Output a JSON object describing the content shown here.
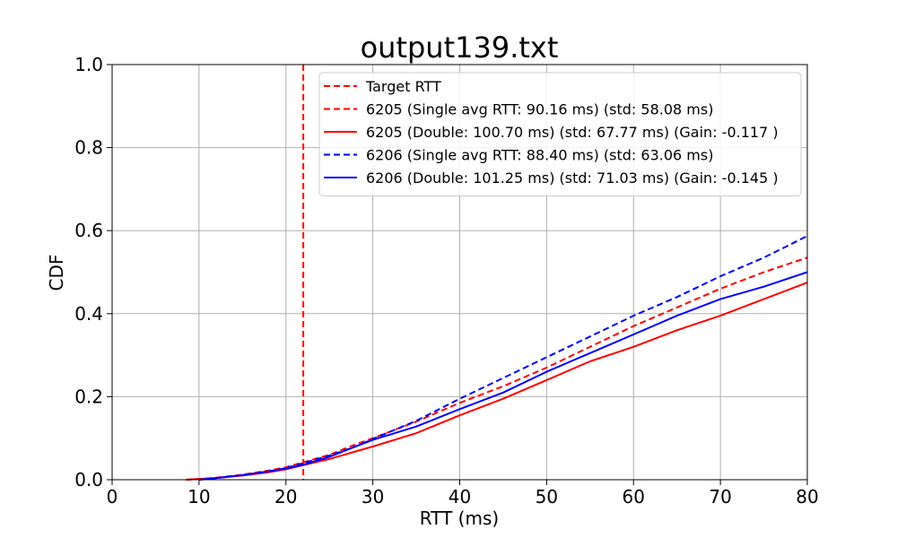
{
  "chart_data": {
    "type": "line",
    "title": "output139.txt",
    "xlabel": "RTT (ms)",
    "ylabel": "CDF",
    "xlim": [
      0,
      80
    ],
    "ylim": [
      0,
      1.0
    ],
    "xticks": [
      0,
      10,
      20,
      30,
      40,
      50,
      60,
      70,
      80
    ],
    "yticks": [
      "0.0",
      "0.2",
      "0.4",
      "0.6",
      "0.8",
      "1.0"
    ],
    "grid": true,
    "legend_placement": "top-right",
    "target_rtt": 22,
    "series": [
      {
        "name": "Target RTT",
        "color": "#ff0000",
        "dash": true,
        "kind": "vline",
        "x": 22
      },
      {
        "name": "6205 (Single avg RTT: 90.16 ms) (std: 58.08 ms)",
        "color": "#ff0000",
        "dash": true,
        "x": [
          8.5,
          10,
          12,
          15,
          18,
          20,
          22,
          25,
          28,
          30,
          35,
          40,
          45,
          50,
          55,
          60,
          65,
          70,
          75,
          80
        ],
        "y": [
          0.0,
          0.002,
          0.005,
          0.012,
          0.022,
          0.03,
          0.042,
          0.06,
          0.085,
          0.1,
          0.14,
          0.185,
          0.225,
          0.27,
          0.32,
          0.37,
          0.415,
          0.46,
          0.5,
          0.535
        ]
      },
      {
        "name": "6205 (Double: 100.70 ms) (std: 67.77 ms) (Gain: -0.117 )",
        "color": "#ff0000",
        "dash": false,
        "x": [
          8.5,
          10,
          12,
          15,
          18,
          20,
          22,
          25,
          28,
          30,
          35,
          40,
          45,
          50,
          55,
          60,
          65,
          70,
          75,
          80
        ],
        "y": [
          0.0,
          0.002,
          0.004,
          0.01,
          0.018,
          0.025,
          0.035,
          0.05,
          0.068,
          0.08,
          0.112,
          0.155,
          0.195,
          0.24,
          0.285,
          0.32,
          0.36,
          0.395,
          0.435,
          0.475
        ]
      },
      {
        "name": "6206 (Single avg RTT: 88.40 ms) (std: 63.06 ms)",
        "color": "#0000ff",
        "dash": true,
        "x": [
          10,
          12,
          15,
          18,
          20,
          22,
          25,
          28,
          30,
          35,
          40,
          45,
          50,
          55,
          60,
          65,
          70,
          75,
          80
        ],
        "y": [
          0.0,
          0.004,
          0.011,
          0.02,
          0.028,
          0.04,
          0.058,
          0.08,
          0.098,
          0.142,
          0.195,
          0.245,
          0.295,
          0.345,
          0.395,
          0.44,
          0.49,
          0.535,
          0.587
        ]
      },
      {
        "name": "6206 (Double: 101.25 ms) (std: 71.03 ms) (Gain: -0.145 )",
        "color": "#0000ff",
        "dash": false,
        "x": [
          10,
          12,
          15,
          18,
          20,
          22,
          25,
          28,
          30,
          35,
          40,
          45,
          50,
          55,
          60,
          65,
          70,
          75,
          80
        ],
        "y": [
          0.0,
          0.004,
          0.011,
          0.02,
          0.027,
          0.036,
          0.055,
          0.08,
          0.096,
          0.128,
          0.17,
          0.21,
          0.26,
          0.305,
          0.35,
          0.395,
          0.435,
          0.465,
          0.5
        ]
      }
    ]
  }
}
